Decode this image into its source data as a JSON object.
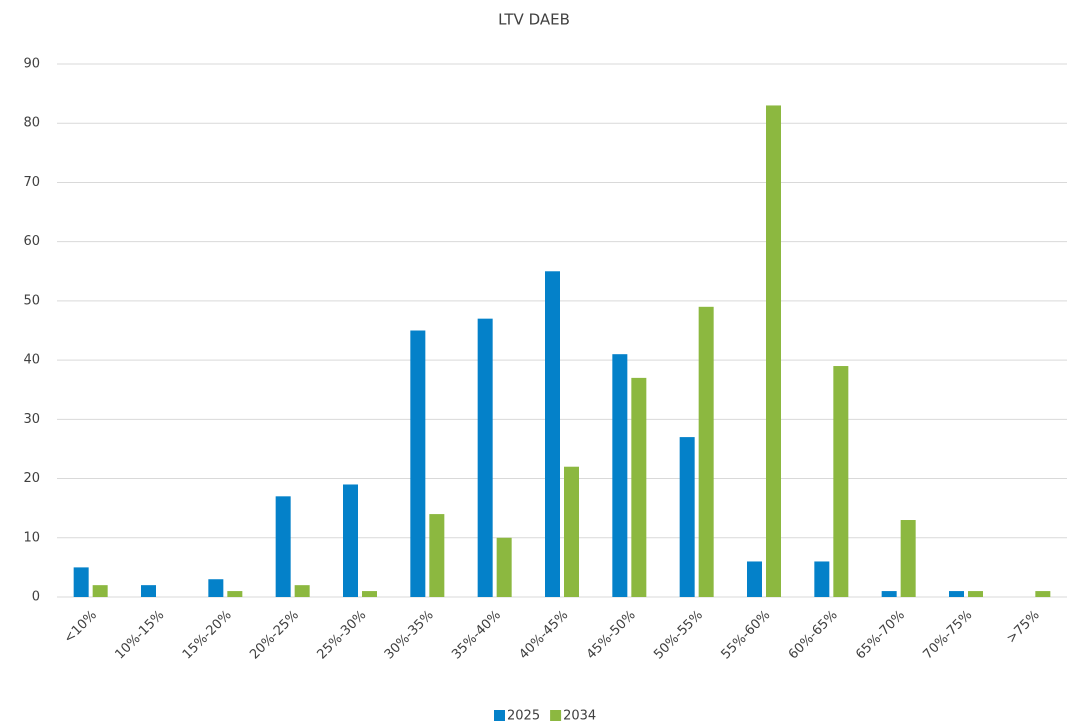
{
  "chart_data": {
    "type": "bar",
    "title": "LTV DAEB",
    "categories": [
      "<10%",
      "10%-15%",
      "15%-20%",
      "20%-25%",
      "25%-30%",
      "30%-35%",
      "35%-40%",
      "40%-45%",
      "45%-50%",
      "50%-55%",
      "55%-60%",
      "60%-65%",
      "65%-70%",
      "70%-75%",
      ">75%"
    ],
    "series": [
      {
        "name": "2025",
        "color": "#0481c9",
        "values": [
          5,
          2,
          3,
          17,
          19,
          45,
          47,
          55,
          41,
          27,
          6,
          6,
          1,
          1,
          0
        ]
      },
      {
        "name": "2034",
        "color": "#8cb840",
        "values": [
          2,
          0,
          1,
          2,
          1,
          14,
          10,
          22,
          37,
          49,
          83,
          39,
          13,
          1,
          1
        ]
      }
    ],
    "ylim": [
      0,
      90
    ],
    "yticks": [
      0,
      10,
      20,
      30,
      40,
      50,
      60,
      70,
      80,
      90
    ],
    "grid": true,
    "legend": "bottom"
  }
}
